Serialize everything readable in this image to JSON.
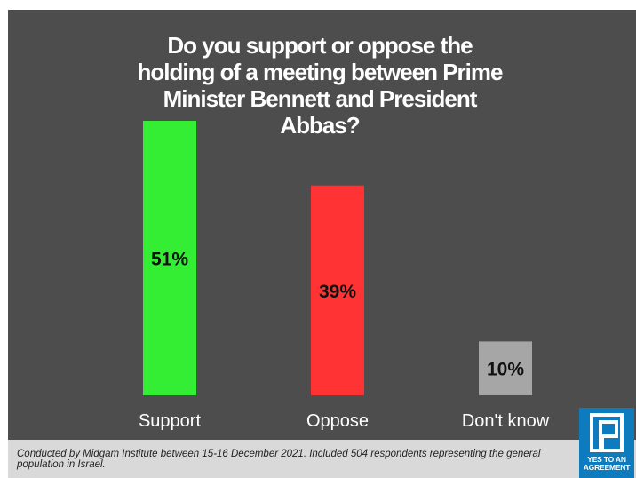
{
  "chart_data": {
    "type": "bar",
    "title": "Do you support or oppose the holding of a meeting between Prime Minister Bennett and President Abbas?",
    "categories": [
      "Support",
      "Oppose",
      "Don't know"
    ],
    "values": [
      51,
      39,
      10
    ],
    "value_labels": [
      "51%",
      "39%",
      "10%"
    ],
    "colors": [
      "#33ee33",
      "#ff3333",
      "#a6a6a6"
    ],
    "xlabel": "",
    "ylabel": "",
    "ylim": [
      0,
      51
    ],
    "grid": false,
    "legend": "none"
  },
  "footnote": "Conducted by Midgam Institute between 15-16 December 2021. Included 504 respondents representing the general population in Israel.",
  "logo": {
    "text": "YES TO AN AGREEMENT"
  },
  "colors": {
    "background": "#4d4d4d",
    "footer": "#d9d9d9",
    "logo": "#0d7bbd"
  }
}
